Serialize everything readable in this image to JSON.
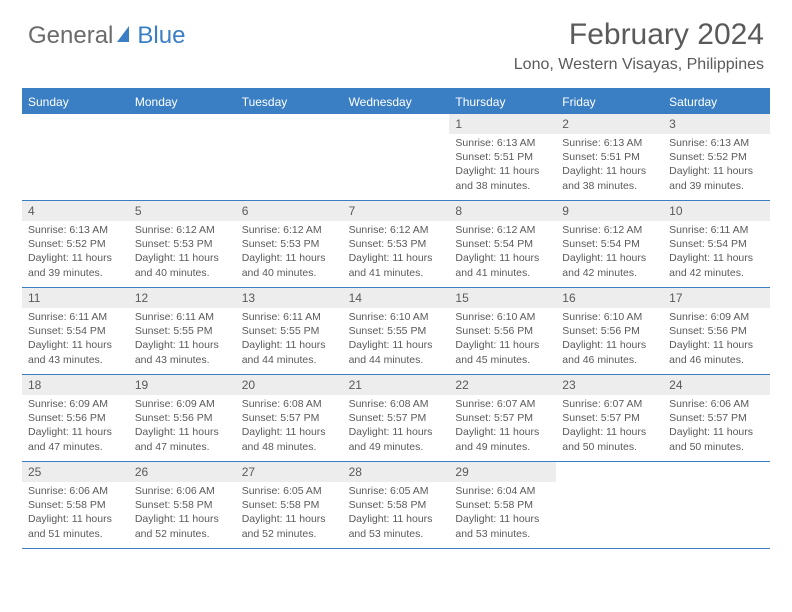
{
  "logo": {
    "text_general": "General",
    "text_blue": "Blue"
  },
  "title": "February 2024",
  "location": "Lono, Western Visayas, Philippines",
  "colors": {
    "header_bg": "#3a7fc4",
    "header_text": "#ffffff",
    "daynum_bg": "#ededed",
    "text": "#5a5a5a",
    "border": "#3a7fc4"
  },
  "day_names": [
    "Sunday",
    "Monday",
    "Tuesday",
    "Wednesday",
    "Thursday",
    "Friday",
    "Saturday"
  ],
  "weeks": [
    [
      {
        "day": "",
        "sunrise": "",
        "sunset": "",
        "daylight": ""
      },
      {
        "day": "",
        "sunrise": "",
        "sunset": "",
        "daylight": ""
      },
      {
        "day": "",
        "sunrise": "",
        "sunset": "",
        "daylight": ""
      },
      {
        "day": "",
        "sunrise": "",
        "sunset": "",
        "daylight": ""
      },
      {
        "day": "1",
        "sunrise": "Sunrise: 6:13 AM",
        "sunset": "Sunset: 5:51 PM",
        "daylight": "Daylight: 11 hours and 38 minutes."
      },
      {
        "day": "2",
        "sunrise": "Sunrise: 6:13 AM",
        "sunset": "Sunset: 5:51 PM",
        "daylight": "Daylight: 11 hours and 38 minutes."
      },
      {
        "day": "3",
        "sunrise": "Sunrise: 6:13 AM",
        "sunset": "Sunset: 5:52 PM",
        "daylight": "Daylight: 11 hours and 39 minutes."
      }
    ],
    [
      {
        "day": "4",
        "sunrise": "Sunrise: 6:13 AM",
        "sunset": "Sunset: 5:52 PM",
        "daylight": "Daylight: 11 hours and 39 minutes."
      },
      {
        "day": "5",
        "sunrise": "Sunrise: 6:12 AM",
        "sunset": "Sunset: 5:53 PM",
        "daylight": "Daylight: 11 hours and 40 minutes."
      },
      {
        "day": "6",
        "sunrise": "Sunrise: 6:12 AM",
        "sunset": "Sunset: 5:53 PM",
        "daylight": "Daylight: 11 hours and 40 minutes."
      },
      {
        "day": "7",
        "sunrise": "Sunrise: 6:12 AM",
        "sunset": "Sunset: 5:53 PM",
        "daylight": "Daylight: 11 hours and 41 minutes."
      },
      {
        "day": "8",
        "sunrise": "Sunrise: 6:12 AM",
        "sunset": "Sunset: 5:54 PM",
        "daylight": "Daylight: 11 hours and 41 minutes."
      },
      {
        "day": "9",
        "sunrise": "Sunrise: 6:12 AM",
        "sunset": "Sunset: 5:54 PM",
        "daylight": "Daylight: 11 hours and 42 minutes."
      },
      {
        "day": "10",
        "sunrise": "Sunrise: 6:11 AM",
        "sunset": "Sunset: 5:54 PM",
        "daylight": "Daylight: 11 hours and 42 minutes."
      }
    ],
    [
      {
        "day": "11",
        "sunrise": "Sunrise: 6:11 AM",
        "sunset": "Sunset: 5:54 PM",
        "daylight": "Daylight: 11 hours and 43 minutes."
      },
      {
        "day": "12",
        "sunrise": "Sunrise: 6:11 AM",
        "sunset": "Sunset: 5:55 PM",
        "daylight": "Daylight: 11 hours and 43 minutes."
      },
      {
        "day": "13",
        "sunrise": "Sunrise: 6:11 AM",
        "sunset": "Sunset: 5:55 PM",
        "daylight": "Daylight: 11 hours and 44 minutes."
      },
      {
        "day": "14",
        "sunrise": "Sunrise: 6:10 AM",
        "sunset": "Sunset: 5:55 PM",
        "daylight": "Daylight: 11 hours and 44 minutes."
      },
      {
        "day": "15",
        "sunrise": "Sunrise: 6:10 AM",
        "sunset": "Sunset: 5:56 PM",
        "daylight": "Daylight: 11 hours and 45 minutes."
      },
      {
        "day": "16",
        "sunrise": "Sunrise: 6:10 AM",
        "sunset": "Sunset: 5:56 PM",
        "daylight": "Daylight: 11 hours and 46 minutes."
      },
      {
        "day": "17",
        "sunrise": "Sunrise: 6:09 AM",
        "sunset": "Sunset: 5:56 PM",
        "daylight": "Daylight: 11 hours and 46 minutes."
      }
    ],
    [
      {
        "day": "18",
        "sunrise": "Sunrise: 6:09 AM",
        "sunset": "Sunset: 5:56 PM",
        "daylight": "Daylight: 11 hours and 47 minutes."
      },
      {
        "day": "19",
        "sunrise": "Sunrise: 6:09 AM",
        "sunset": "Sunset: 5:56 PM",
        "daylight": "Daylight: 11 hours and 47 minutes."
      },
      {
        "day": "20",
        "sunrise": "Sunrise: 6:08 AM",
        "sunset": "Sunset: 5:57 PM",
        "daylight": "Daylight: 11 hours and 48 minutes."
      },
      {
        "day": "21",
        "sunrise": "Sunrise: 6:08 AM",
        "sunset": "Sunset: 5:57 PM",
        "daylight": "Daylight: 11 hours and 49 minutes."
      },
      {
        "day": "22",
        "sunrise": "Sunrise: 6:07 AM",
        "sunset": "Sunset: 5:57 PM",
        "daylight": "Daylight: 11 hours and 49 minutes."
      },
      {
        "day": "23",
        "sunrise": "Sunrise: 6:07 AM",
        "sunset": "Sunset: 5:57 PM",
        "daylight": "Daylight: 11 hours and 50 minutes."
      },
      {
        "day": "24",
        "sunrise": "Sunrise: 6:06 AM",
        "sunset": "Sunset: 5:57 PM",
        "daylight": "Daylight: 11 hours and 50 minutes."
      }
    ],
    [
      {
        "day": "25",
        "sunrise": "Sunrise: 6:06 AM",
        "sunset": "Sunset: 5:58 PM",
        "daylight": "Daylight: 11 hours and 51 minutes."
      },
      {
        "day": "26",
        "sunrise": "Sunrise: 6:06 AM",
        "sunset": "Sunset: 5:58 PM",
        "daylight": "Daylight: 11 hours and 52 minutes."
      },
      {
        "day": "27",
        "sunrise": "Sunrise: 6:05 AM",
        "sunset": "Sunset: 5:58 PM",
        "daylight": "Daylight: 11 hours and 52 minutes."
      },
      {
        "day": "28",
        "sunrise": "Sunrise: 6:05 AM",
        "sunset": "Sunset: 5:58 PM",
        "daylight": "Daylight: 11 hours and 53 minutes."
      },
      {
        "day": "29",
        "sunrise": "Sunrise: 6:04 AM",
        "sunset": "Sunset: 5:58 PM",
        "daylight": "Daylight: 11 hours and 53 minutes."
      },
      {
        "day": "",
        "sunrise": "",
        "sunset": "",
        "daylight": ""
      },
      {
        "day": "",
        "sunrise": "",
        "sunset": "",
        "daylight": ""
      }
    ]
  ]
}
